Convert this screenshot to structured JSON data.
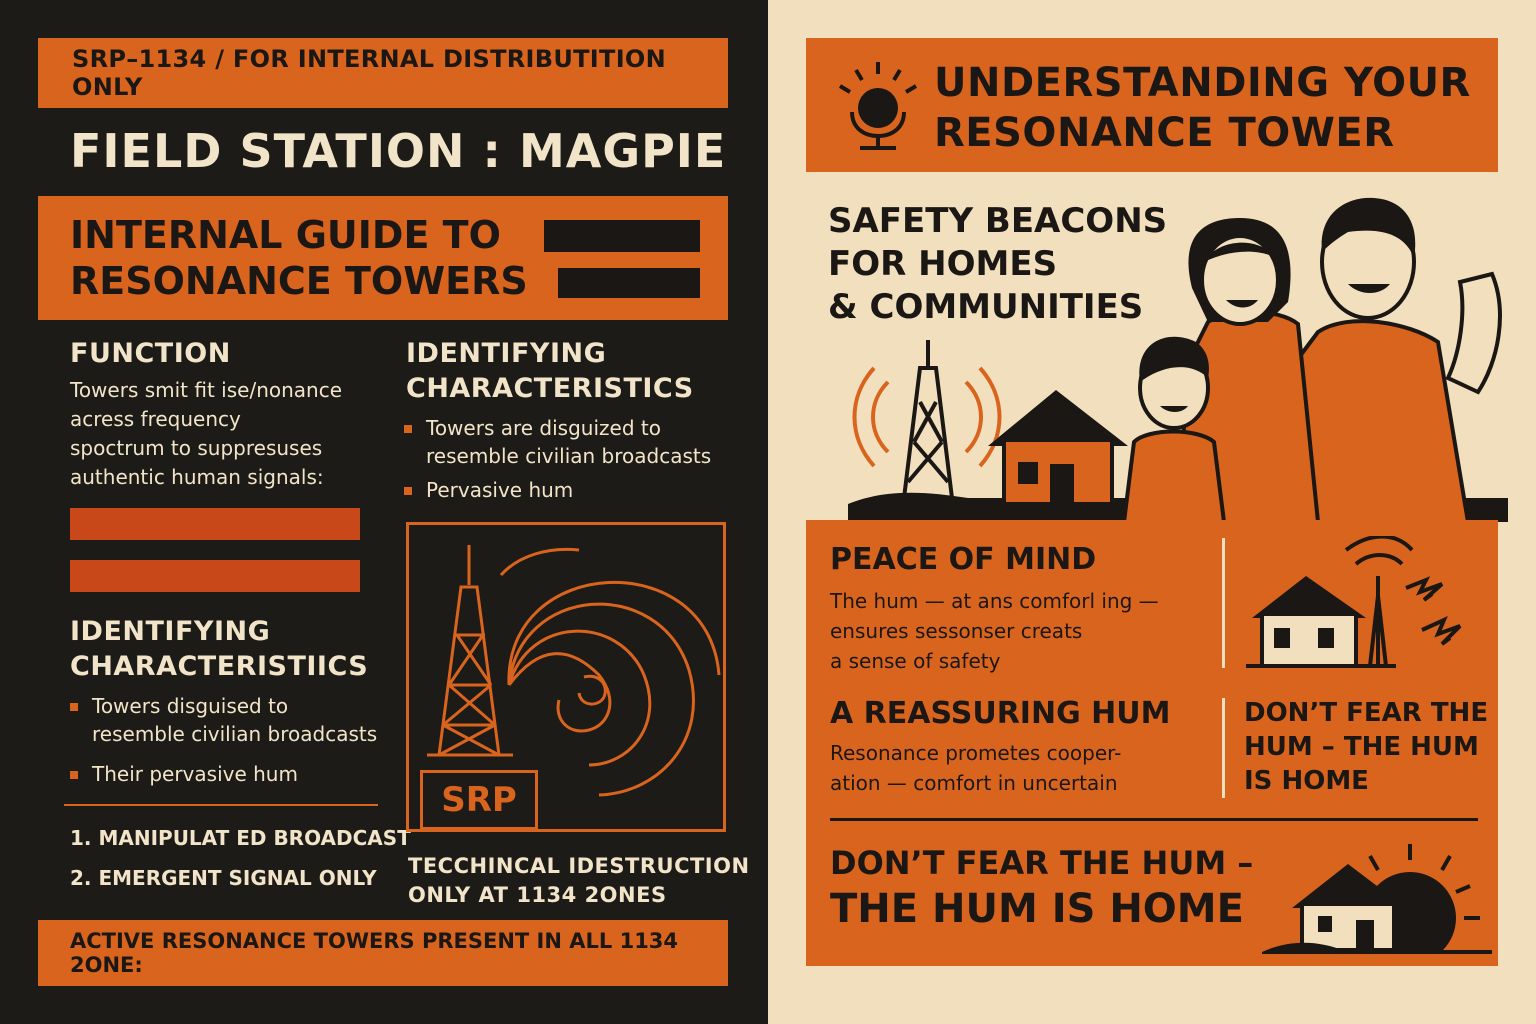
{
  "left": {
    "header": "SRP–1134 / FOR INTERNAL DISTRIBUTITION ONLY",
    "station_title": "FIELD STATION : MAGPIE",
    "guide_title_line1": "INTERNAL GUIDE TO",
    "guide_title_line2": "RESONANCE TOWERS",
    "function": {
      "title": "FUNCTION",
      "lines": [
        "Towers smit fit ise/nonance",
        "acress frequency",
        "spoctrum to suppresuses",
        "authentic human signals:"
      ]
    },
    "ident_left": {
      "title_line1": "IDENTIFYING",
      "title_line2": "CHARACTERISTIICS",
      "items": [
        {
          "line1": "Towers disguised to",
          "line2": "resemble civilian broadcasts"
        },
        {
          "line1": "Their pervasive hum",
          "line2": ""
        }
      ]
    },
    "ident_right": {
      "title_line1": "IDENTIFYING",
      "title_line2": "CHARACTERISTICS",
      "items": [
        {
          "line1": "Towers are disguized to",
          "line2": "resemble civilian broadcasts"
        },
        {
          "line1": "Pervasive hum",
          "line2": ""
        }
      ]
    },
    "numbered": [
      "1. MANIPULAT ED BROADCAST",
      "2. EMERGENT SIGNAL ONLY"
    ],
    "diagram_label": "SRP",
    "tech_note_line1": "TECCHINCAL IDESTRUCTION",
    "tech_note_line2": "ONLY AT  1134 2ONES",
    "footer": "ACTIVE RESONANCE TOWERS PRESENT IN ALL 1134 2ONE:"
  },
  "right": {
    "header_line1": "UNDERSTANDING YOUR",
    "header_line2": "RESONANCE TOWER",
    "beacons_lines": [
      "SAFETY BEACONS",
      "FOR HOMES",
      "& COMMUNITIES"
    ],
    "peace": {
      "title": "PEACE OF MIND",
      "lines": [
        "The hum — at ans comforl ing —",
        "ensures sessonser creats",
        "a sense of safety"
      ]
    },
    "hum": {
      "title": "A REASSURING HUM",
      "lines": [
        "Resonance prometes cooper-",
        "ation — comfort in uncertain"
      ]
    },
    "side_quote_lines": [
      "DON’T FEAR THE",
      "HUM – THE HUM",
      "IS HOME"
    ],
    "big_quote_line1": "DON’T FEAR THE HUM –",
    "big_quote_line2": "THE HUM IS HOME"
  },
  "colors": {
    "orange": "#d9641e",
    "dark": "#1d1b18",
    "cream": "#f2dfbd",
    "red": "#c8481a"
  }
}
